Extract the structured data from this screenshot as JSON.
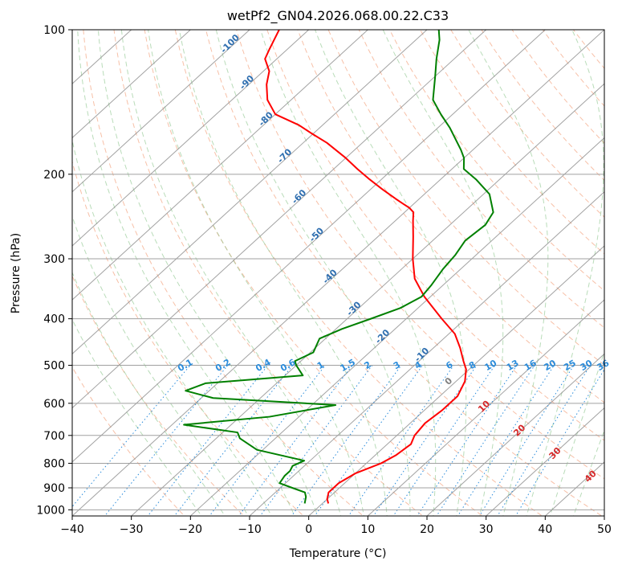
{
  "chart_data": {
    "type": "skew-t",
    "title": "wetPf2_GN04.2026.068.00.22.C33",
    "xlabel": "Temperature (°C)",
    "ylabel": "Pressure (hPa)",
    "xlim": [
      -40,
      50
    ],
    "ylim": [
      1030,
      100
    ],
    "x_ticks": [
      -40,
      -30,
      -20,
      -10,
      0,
      10,
      20,
      30,
      40,
      50
    ],
    "y_ticks": [
      100,
      200,
      300,
      400,
      500,
      600,
      700,
      800,
      900,
      1000
    ],
    "y_scale": "log",
    "grid": true,
    "isotherm_labels": [
      "-100",
      "-90",
      "-80",
      "-70",
      "-60",
      "-50",
      "-40",
      "-30",
      "-20",
      "-10"
    ],
    "mixing_ratio_labels": [
      "0.1",
      "0.2",
      "0.4",
      "0.6",
      "1",
      "1.5",
      "2",
      "3",
      "4",
      "6",
      "8",
      "10",
      "13",
      "16",
      "20",
      "25",
      "30",
      "36"
    ],
    "moist_adiabat_labels": [
      "0",
      "10",
      "20",
      "30",
      "40"
    ],
    "series": [
      {
        "kind": "temperature",
        "color": "#ff0000",
        "points": [
          [
            1.0,
            970
          ],
          [
            0.0,
            950
          ],
          [
            -1.0,
            920
          ],
          [
            -1.0,
            880
          ],
          [
            0.0,
            840
          ],
          [
            2.5,
            800
          ],
          [
            3.5,
            770
          ],
          [
            4.0,
            730
          ],
          [
            3.0,
            700
          ],
          [
            2.5,
            660
          ],
          [
            3.0,
            620
          ],
          [
            3.0,
            580
          ],
          [
            1.5,
            540
          ],
          [
            -0.5,
            510
          ],
          [
            -2.5,
            490
          ],
          [
            -5.5,
            460
          ],
          [
            -9.0,
            430
          ],
          [
            -14.0,
            400
          ],
          [
            -21.0,
            360
          ],
          [
            -26.0,
            330
          ],
          [
            -30.0,
            300
          ],
          [
            -34.0,
            270
          ],
          [
            -37.0,
            250
          ],
          [
            -38.5,
            240
          ],
          [
            -40.0,
            235
          ],
          [
            -42.0,
            230
          ],
          [
            -44.0,
            225
          ],
          [
            -48.0,
            215
          ],
          [
            -52.0,
            205
          ],
          [
            -56.0,
            195
          ],
          [
            -60.0,
            185
          ],
          [
            -66.0,
            172
          ],
          [
            -70.0,
            165
          ],
          [
            -74.0,
            158
          ],
          [
            -80.0,
            150
          ],
          [
            -84.0,
            140
          ],
          [
            -87.0,
            130
          ],
          [
            -89.0,
            122
          ],
          [
            -92.0,
            115
          ],
          [
            -93.0,
            110
          ],
          [
            -95.0,
            100
          ]
        ]
      },
      {
        "kind": "dewpoint",
        "color": "#008000",
        "points": [
          [
            -3.0,
            970
          ],
          [
            -4.0,
            940
          ],
          [
            -5.0,
            920
          ],
          [
            -8.0,
            900
          ],
          [
            -11.0,
            880
          ],
          [
            -11.5,
            850
          ],
          [
            -11.5,
            830
          ],
          [
            -12.0,
            810
          ],
          [
            -11.0,
            790
          ],
          [
            -21.0,
            750
          ],
          [
            -26.0,
            710
          ],
          [
            -27.5,
            690
          ],
          [
            -38.0,
            665
          ],
          [
            -25.0,
            640
          ],
          [
            -16.0,
            605
          ],
          [
            -38.0,
            585
          ],
          [
            -44.0,
            565
          ],
          [
            -42.0,
            545
          ],
          [
            -27.0,
            525
          ],
          [
            -30.0,
            500
          ],
          [
            -31.0,
            490
          ],
          [
            -29.5,
            470
          ],
          [
            -31.0,
            440
          ],
          [
            -29.0,
            420
          ],
          [
            -26.0,
            400
          ],
          [
            -23.0,
            380
          ],
          [
            -21.5,
            360
          ],
          [
            -22.0,
            340
          ],
          [
            -23.0,
            315
          ],
          [
            -23.5,
            295
          ],
          [
            -24.5,
            275
          ],
          [
            -24.0,
            255
          ],
          [
            -25.0,
            240
          ],
          [
            -29.0,
            220
          ],
          [
            -34.0,
            205
          ],
          [
            -38.0,
            195
          ],
          [
            -40.0,
            185
          ],
          [
            -42.0,
            178
          ],
          [
            -48.0,
            160
          ],
          [
            -52.0,
            150
          ],
          [
            -56.0,
            140
          ],
          [
            -60.0,
            125
          ],
          [
            -63.0,
            115
          ],
          [
            -66.0,
            105
          ],
          [
            -68.0,
            100
          ]
        ]
      }
    ]
  }
}
